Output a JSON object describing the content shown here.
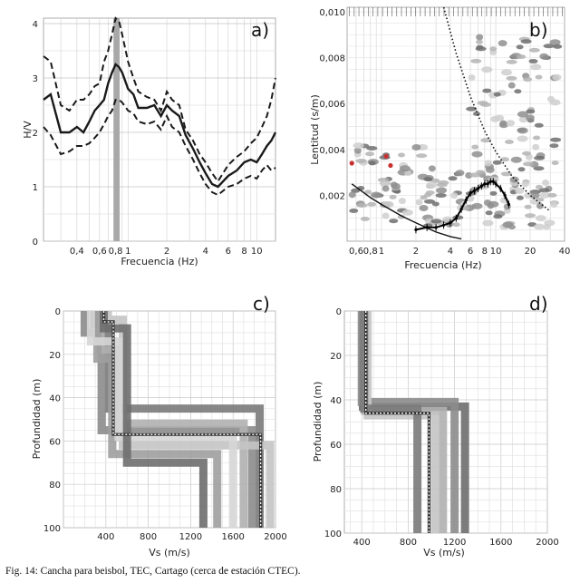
{
  "caption": "Fig. 14: Cancha para beisbol, TEC, Cartago (cerca de estación CTEC).",
  "chart_data": [
    {
      "panel": "a)",
      "type": "line",
      "xlabel": "Frecuencia (Hz)",
      "ylabel": "H/V",
      "xscale": "log",
      "xlim": [
        0.22,
        14
      ],
      "ylim": [
        0,
        4.1
      ],
      "xticks": [
        "0,4",
        "0,6",
        "0,8",
        "1",
        "2",
        "4",
        "6",
        "8",
        "10"
      ],
      "xtick_values": [
        0.4,
        0.6,
        0.8,
        1,
        2,
        4,
        6,
        8,
        10
      ],
      "yticks": [
        0,
        1,
        2,
        3,
        4
      ],
      "grid": true,
      "highlight_band": [
        0.77,
        0.86
      ],
      "x": [
        0.22,
        0.25,
        0.3,
        0.35,
        0.4,
        0.45,
        0.5,
        0.55,
        0.6,
        0.65,
        0.7,
        0.75,
        0.8,
        0.85,
        0.9,
        1.0,
        1.1,
        1.2,
        1.4,
        1.6,
        1.8,
        2.0,
        2.2,
        2.5,
        2.8,
        3.2,
        3.6,
        4.0,
        4.5,
        5.0,
        6.0,
        7.0,
        8.0,
        9.0,
        10.0,
        11.0,
        12.0,
        13.0,
        14.0
      ],
      "series": [
        {
          "name": "",
          "style": "solid",
          "values": [
            2.6,
            2.7,
            2.0,
            2.0,
            2.1,
            2.0,
            2.2,
            2.4,
            2.5,
            2.6,
            2.9,
            3.1,
            3.25,
            3.2,
            3.1,
            2.8,
            2.7,
            2.45,
            2.45,
            2.5,
            2.3,
            2.5,
            2.4,
            2.3,
            1.95,
            1.7,
            1.45,
            1.25,
            1.05,
            1.0,
            1.2,
            1.3,
            1.45,
            1.5,
            1.45,
            1.6,
            1.75,
            1.85,
            2.0
          ]
        },
        {
          "name": "",
          "style": "dashed",
          "values": [
            3.4,
            3.3,
            2.5,
            2.4,
            2.6,
            2.6,
            2.7,
            2.85,
            2.9,
            3.3,
            3.5,
            3.8,
            4.1,
            4.05,
            3.8,
            3.3,
            3.0,
            2.75,
            2.65,
            2.6,
            2.4,
            2.75,
            2.6,
            2.5,
            2.05,
            1.85,
            1.6,
            1.45,
            1.25,
            1.1,
            1.4,
            1.55,
            1.65,
            1.8,
            1.9,
            2.1,
            2.3,
            2.6,
            3.0
          ]
        },
        {
          "name": "",
          "style": "dashed",
          "values": [
            2.1,
            1.95,
            1.6,
            1.65,
            1.75,
            1.75,
            1.8,
            1.9,
            2.0,
            2.15,
            2.3,
            2.4,
            2.6,
            2.6,
            2.55,
            2.4,
            2.35,
            2.2,
            2.15,
            2.2,
            2.05,
            2.3,
            2.1,
            2.0,
            1.75,
            1.5,
            1.25,
            1.05,
            0.9,
            0.85,
            1.0,
            1.05,
            1.15,
            1.2,
            1.15,
            1.3,
            1.4,
            1.3,
            1.35
          ]
        }
      ]
    },
    {
      "panel": "b)",
      "type": "scatter",
      "xlabel": "Frecuencia (Hz)",
      "ylabel": "Lentitud (s/m)",
      "xscale": "log",
      "xlim": [
        0.5,
        40
      ],
      "ylim": [
        0,
        0.0102
      ],
      "xticks": [
        "0,6",
        "0,8",
        "1",
        "2",
        "4",
        "6",
        "8",
        "10",
        "20",
        "40"
      ],
      "xtick_values": [
        0.6,
        0.8,
        1,
        2,
        4,
        6,
        8,
        10,
        20,
        40
      ],
      "yticks": [
        "0,002",
        "0,004",
        "0,006",
        "0,008",
        "0,010"
      ],
      "ytick_values": [
        0.002,
        0.004,
        0.006,
        0.008,
        0.01
      ],
      "grid": true,
      "dispersion_curve": {
        "x": [
          2,
          2.5,
          3,
          3.5,
          4,
          4.5,
          5,
          5.5,
          6,
          6.5,
          7,
          7.5,
          8,
          8.5,
          9,
          9.5,
          10,
          11,
          12,
          13
        ],
        "values": [
          0.0005,
          0.0006,
          0.0006,
          0.0007,
          0.0008,
          0.001,
          0.0014,
          0.0018,
          0.0021,
          0.0022,
          0.0023,
          0.0024,
          0.0025,
          0.0025,
          0.0026,
          0.0026,
          0.0025,
          0.0023,
          0.002,
          0.0016
        ]
      },
      "solid_limit": {
        "x": [
          0.55,
          0.8,
          1,
          1.5,
          2,
          3,
          4,
          5
        ],
        "values": [
          0.0025,
          0.0019,
          0.0016,
          0.0011,
          0.0008,
          0.0004,
          0.0002,
          0.0001
        ]
      },
      "dotted_limit": {
        "x": [
          3.5,
          4.5,
          6,
          8,
          10,
          14,
          20,
          30
        ],
        "values": [
          0.0102,
          0.0082,
          0.0063,
          0.0048,
          0.0039,
          0.0028,
          0.002,
          0.0013
        ]
      },
      "red_points": [
        [
          1.1,
          0.0037
        ],
        [
          0.55,
          0.0034
        ],
        [
          1.2,
          0.0033
        ]
      ]
    },
    {
      "panel": "c)",
      "type": "line",
      "xlabel": "Vs (m/s)",
      "ylabel": "Profundidad (m)",
      "xlim": [
        0,
        2000
      ],
      "ylim": [
        100,
        0
      ],
      "xticks": [
        400,
        800,
        1200,
        1600,
        2000
      ],
      "yticks": [
        0,
        20,
        40,
        60,
        80,
        100
      ],
      "grid": true,
      "profiles": [
        {
          "name": "",
          "tone": "#7a7a7a",
          "x": [
            290,
            290,
            430,
            430,
            1850,
            1850
          ],
          "y": [
            0,
            6,
            6,
            45,
            45,
            100
          ]
        },
        {
          "name": "",
          "tone": "#8c8c8c",
          "x": [
            200,
            200,
            360,
            360,
            1780,
            1780
          ],
          "y": [
            0,
            10,
            10,
            55,
            55,
            100
          ]
        },
        {
          "name": "",
          "tone": "#b0b0b0",
          "x": [
            350,
            350,
            500,
            500,
            1700,
            1700
          ],
          "y": [
            0,
            18,
            18,
            52,
            52,
            100
          ]
        },
        {
          "name": "",
          "tone": "#c4c4c4",
          "x": [
            420,
            420,
            560,
            560,
            1950,
            1950
          ],
          "y": [
            0,
            4,
            4,
            62,
            62,
            100
          ]
        },
        {
          "name": "",
          "tone": "#9e9e9e",
          "x": [
            320,
            320,
            460,
            460,
            1450,
            1450
          ],
          "y": [
            0,
            22,
            22,
            66,
            66,
            100
          ]
        },
        {
          "name": "",
          "tone": "#d6d6d6",
          "x": [
            260,
            260,
            520,
            520,
            1600,
            1600
          ],
          "y": [
            0,
            14,
            14,
            58,
            58,
            100
          ]
        },
        {
          "name": "",
          "tone": "#6e6e6e",
          "x": [
            380,
            380,
            600,
            600,
            1320,
            1320
          ],
          "y": [
            0,
            8,
            8,
            70,
            70,
            100
          ]
        }
      ],
      "best_profile": {
        "x": [
          380,
          380,
          470,
          470,
          1860,
          1860
        ],
        "y": [
          0,
          5,
          5,
          57,
          57,
          100
        ]
      }
    },
    {
      "panel": "d)",
      "type": "line",
      "xlabel": "Vs (m/s)",
      "ylabel": "Profundidad (m)",
      "xlim": [
        250,
        2000
      ],
      "ylim": [
        100,
        0
      ],
      "xticks": [
        400,
        800,
        1200,
        1600,
        2000
      ],
      "yticks": [
        0,
        20,
        40,
        60,
        80,
        100
      ],
      "grid": true,
      "profiles": [
        {
          "name": "",
          "tone": "#6e6e6e",
          "x": [
            410,
            410,
            1290,
            1290
          ],
          "y": [
            0,
            43,
            43,
            100
          ]
        },
        {
          "name": "",
          "tone": "#8c8c8c",
          "x": [
            400,
            400,
            1200,
            1200
          ],
          "y": [
            0,
            41,
            41,
            100
          ]
        },
        {
          "name": "",
          "tone": "#b0b0b0",
          "x": [
            430,
            430,
            1100,
            1100
          ],
          "y": [
            0,
            45,
            45,
            100
          ]
        },
        {
          "name": "",
          "tone": "#c4c4c4",
          "x": [
            450,
            450,
            1030,
            1030
          ],
          "y": [
            0,
            47,
            47,
            100
          ]
        },
        {
          "name": "",
          "tone": "#7a7a7a",
          "x": [
            420,
            420,
            880,
            880
          ],
          "y": [
            0,
            44,
            44,
            100
          ]
        }
      ],
      "best_profile": {
        "x": [
          435,
          435,
          980,
          980
        ],
        "y": [
          0,
          46,
          46,
          100
        ]
      }
    }
  ]
}
